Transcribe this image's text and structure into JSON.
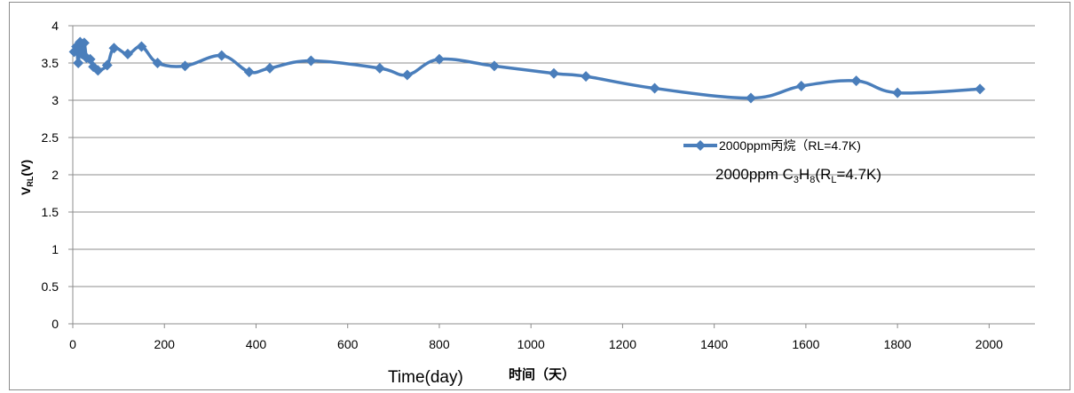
{
  "chart_data": {
    "type": "line",
    "xlabel": "Time(day)",
    "xlabel_secondary": "时间（天）",
    "ylabel_main": "V",
    "ylabel_sub": "RL",
    "ylabel_unit": "(V)",
    "xlim": [
      0,
      2100
    ],
    "ylim": [
      0,
      4
    ],
    "x_ticks": [
      0,
      200,
      400,
      600,
      800,
      1000,
      1200,
      1400,
      1600,
      1800,
      2000
    ],
    "y_ticks": [
      "0",
      "0.5",
      "1",
      "1.5",
      "2",
      "2.5",
      "3",
      "3.5",
      "4"
    ],
    "grid": "horizontal",
    "legend_position": "right-middle",
    "series": [
      {
        "name": "2000ppm丙烷（RL=4.7K)",
        "color": "#4a7ebb",
        "marker": "diamond",
        "x": [
          3,
          8,
          12,
          16,
          20,
          25,
          30,
          38,
          45,
          55,
          75,
          90,
          120,
          150,
          185,
          245,
          325,
          385,
          430,
          520,
          670,
          730,
          800,
          920,
          1050,
          1120,
          1270,
          1480,
          1590,
          1710,
          1800,
          1980
        ],
        "y": [
          3.65,
          3.72,
          3.5,
          3.78,
          3.62,
          3.77,
          3.57,
          3.55,
          3.45,
          3.4,
          3.47,
          3.7,
          3.62,
          3.72,
          3.5,
          3.46,
          3.6,
          3.38,
          3.43,
          3.53,
          3.43,
          3.34,
          3.55,
          3.46,
          3.36,
          3.32,
          3.16,
          3.03,
          3.19,
          3.26,
          3.1,
          3.15
        ]
      }
    ],
    "annotation": {
      "prefix": "2000ppm C",
      "s1": "3",
      "mid": "H",
      "s2": "8",
      "paren": "(R",
      "s3": "L",
      "suffix": "=4.7K)"
    }
  }
}
